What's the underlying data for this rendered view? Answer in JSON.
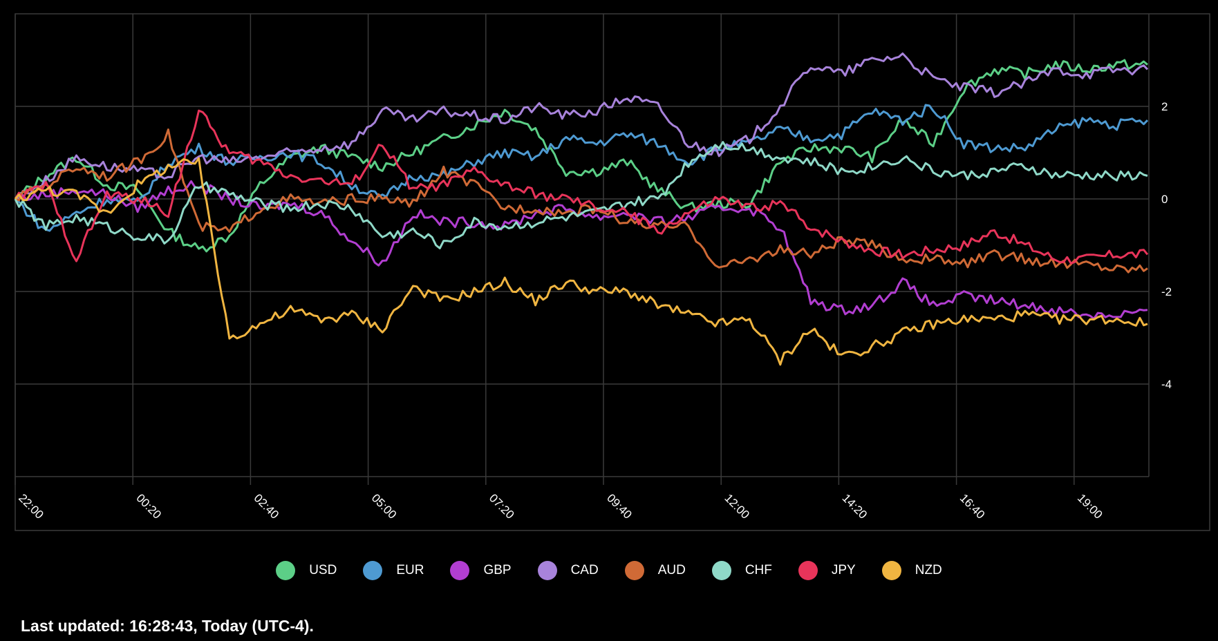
{
  "chart_data": {
    "type": "line",
    "x_labels": [
      "22:00",
      "00:20",
      "02:40",
      "05:00",
      "07:20",
      "09:40",
      "12:00",
      "14:20",
      "16:40",
      "19:00"
    ],
    "y_ticks": [
      2,
      0,
      -2,
      -4
    ],
    "y_tick_labels": [
      "2",
      "0",
      "-2",
      "-4"
    ],
    "ylim": [
      -6,
      4
    ],
    "grid": true,
    "legend_position": "bottom",
    "series": [
      {
        "name": "USD",
        "color": "#5ccf87",
        "values": [
          0,
          0.5,
          0.9,
          0.3,
          0.2,
          -0.7,
          -1.1,
          -0.8,
          0.3,
          0.9,
          1.1,
          0.9,
          0.7,
          1.0,
          1.3,
          1.6,
          1.9,
          1.5,
          0.6,
          0.6,
          0.8,
          0.2,
          -0.2,
          -0.1,
          -0.1,
          0.8,
          1.1,
          1.1,
          0.9,
          1.7,
          1.2,
          2.4,
          2.8,
          2.7,
          2.9,
          2.8,
          2.9,
          2.9
        ]
      },
      {
        "name": "EUR",
        "color": "#4e9ad2",
        "values": [
          0,
          -0.7,
          -0.3,
          0.0,
          -0.1,
          0.8,
          1.1,
          0.8,
          0.9,
          1.0,
          0.8,
          0.3,
          0.0,
          0.5,
          0.5,
          0.8,
          1.0,
          0.9,
          1.3,
          1.2,
          1.4,
          1.2,
          0.8,
          1.1,
          1.2,
          1.5,
          1.3,
          1.4,
          1.9,
          1.7,
          2.0,
          1.2,
          1.1,
          1.1,
          1.5,
          1.7,
          1.6,
          1.7
        ]
      },
      {
        "name": "GBP",
        "color": "#b23ed1",
        "values": [
          0,
          0.1,
          0.2,
          0.1,
          -0.2,
          0.2,
          0.3,
          0.0,
          -0.2,
          -0.1,
          -0.3,
          -0.9,
          -1.4,
          -0.3,
          -0.5,
          -0.5,
          -0.6,
          -0.3,
          -0.2,
          -0.4,
          -0.3,
          -0.5,
          -0.4,
          -0.2,
          -0.2,
          -0.6,
          -2.2,
          -2.4,
          -2.3,
          -1.8,
          -2.3,
          -2.1,
          -2.2,
          -2.3,
          -2.4,
          -2.5,
          -2.5,
          -2.4
        ]
      },
      {
        "name": "CAD",
        "color": "#a883db",
        "values": [
          0,
          0.4,
          0.9,
          0.7,
          0.6,
          0.5,
          0.9,
          0.8,
          0.9,
          1.0,
          1.1,
          1.2,
          1.9,
          1.7,
          1.9,
          1.8,
          1.7,
          2.0,
          1.8,
          1.9,
          2.2,
          2.0,
          1.2,
          1.0,
          1.3,
          2.0,
          2.9,
          2.7,
          3.0,
          3.1,
          2.6,
          2.4,
          2.3,
          2.5,
          2.8,
          2.7,
          2.8,
          2.8
        ]
      },
      {
        "name": "AUD",
        "color": "#d06a36",
        "values": [
          0,
          0.3,
          0.7,
          0.5,
          0.8,
          1.4,
          -0.6,
          -0.7,
          -0.2,
          0.0,
          -0.1,
          0.0,
          0.0,
          -0.1,
          0.6,
          0.3,
          -0.2,
          -0.2,
          -0.3,
          -0.2,
          -0.5,
          -0.6,
          -0.6,
          -1.5,
          -1.3,
          -1.1,
          -1.2,
          -0.9,
          -1.0,
          -1.3,
          -1.3,
          -1.4,
          -1.2,
          -1.3,
          -1.4,
          -1.4,
          -1.5,
          -1.5
        ]
      },
      {
        "name": "CHF",
        "color": "#8fd9c8",
        "values": [
          0,
          -0.6,
          -0.4,
          -0.6,
          -0.8,
          -0.9,
          0.3,
          0.1,
          -0.1,
          -0.2,
          -0.1,
          -0.2,
          -0.8,
          -0.7,
          -1.0,
          -0.5,
          -0.6,
          -0.5,
          -0.4,
          -0.3,
          -0.1,
          0.0,
          0.8,
          1.2,
          1.1,
          0.9,
          0.8,
          0.6,
          0.7,
          0.9,
          0.6,
          0.5,
          0.6,
          0.7,
          0.5,
          0.5,
          0.5,
          0.5
        ]
      },
      {
        "name": "JPY",
        "color": "#e8345a",
        "values": [
          0,
          0.3,
          -1.3,
          0.1,
          0.0,
          -0.3,
          1.9,
          1.0,
          0.8,
          0.5,
          0.4,
          0.3,
          1.2,
          0.2,
          0.3,
          0.6,
          0.3,
          0.1,
          0.0,
          -0.2,
          -0.3,
          -0.7,
          -0.3,
          0.0,
          -0.2,
          -0.1,
          -0.6,
          -0.9,
          -1.1,
          -1.2,
          -1.1,
          -1.0,
          -0.7,
          -1.0,
          -1.3,
          -1.3,
          -1.2,
          -1.2
        ]
      },
      {
        "name": "NZD",
        "color": "#f0b541",
        "values": [
          0,
          0.2,
          0.1,
          -0.3,
          0.3,
          0.7,
          0.8,
          -3.0,
          -2.7,
          -2.4,
          -2.6,
          -2.5,
          -2.8,
          -1.9,
          -2.2,
          -2.0,
          -1.8,
          -2.2,
          -1.8,
          -2.0,
          -2.0,
          -2.3,
          -2.5,
          -2.7,
          -2.6,
          -3.5,
          -2.8,
          -3.4,
          -3.2,
          -2.9,
          -2.7,
          -2.6,
          -2.6,
          -2.5,
          -2.6,
          -2.6,
          -2.6,
          -2.7
        ]
      }
    ]
  },
  "footer": {
    "last_updated": "Last updated: 16:28:43, Today (UTC-4)."
  }
}
